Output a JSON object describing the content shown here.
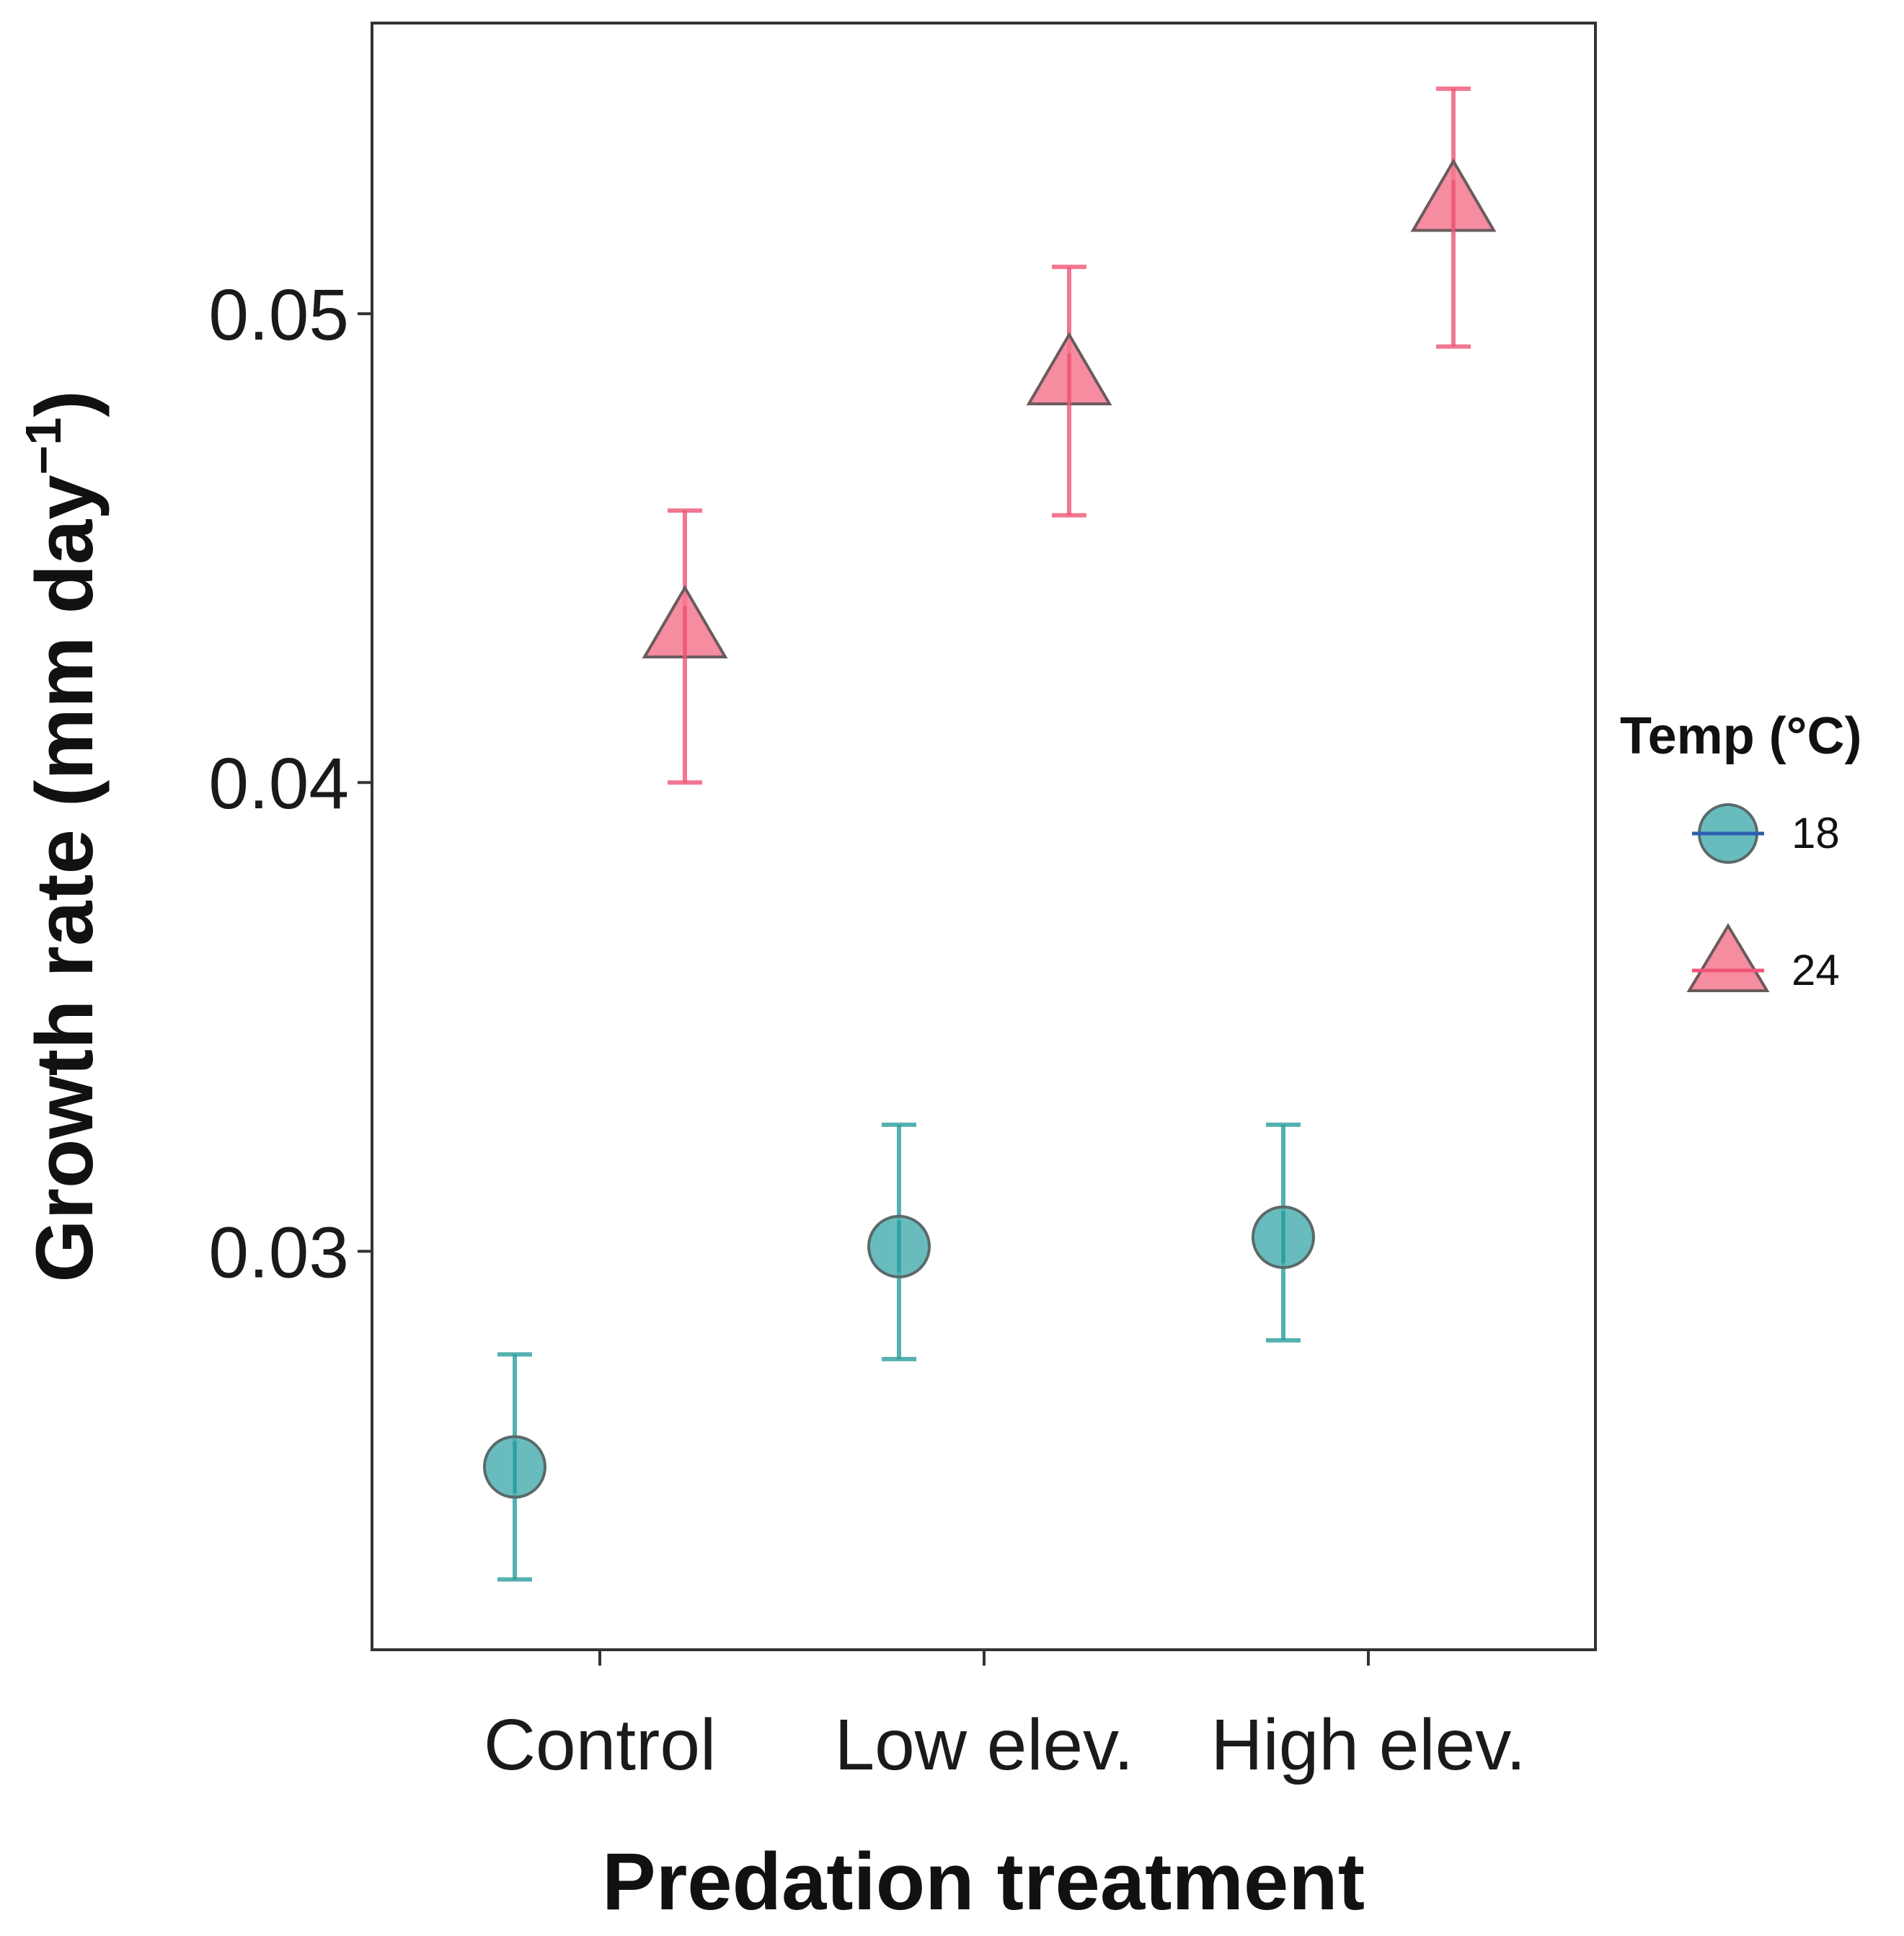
{
  "chart_data": {
    "type": "scatter",
    "categories": [
      "Control",
      "Low elev.",
      "High elev."
    ],
    "xlabel": "Predation treatment",
    "ylabel": "Growth rate (mm day",
    "ylabel_superscript": "−1",
    "ylabel_close": ")",
    "y_ticks": [
      0.03,
      0.04,
      0.05
    ],
    "y_tick_labels": [
      "0.03",
      "0.04",
      "0.05"
    ],
    "ylim": [
      0.0215,
      0.0562
    ],
    "grid": false,
    "legend": {
      "title": "Temp (°C)",
      "position": "right"
    },
    "series": [
      {
        "name": "18",
        "marker": "circle",
        "color": "#2a9d9d",
        "fill": "#4fb0b3",
        "values": [
          0.0254,
          0.0301,
          0.0303
        ],
        "lower": [
          0.023,
          0.0277,
          0.0281
        ],
        "upper": [
          0.0278,
          0.0327,
          0.0327
        ]
      },
      {
        "name": "24",
        "marker": "triangle",
        "color": "#ef5575",
        "fill": "#f4788e",
        "values": [
          0.0432,
          0.0486,
          0.0523
        ],
        "lower": [
          0.04,
          0.0457,
          0.0493
        ],
        "upper": [
          0.0458,
          0.051,
          0.0548
        ]
      }
    ]
  }
}
